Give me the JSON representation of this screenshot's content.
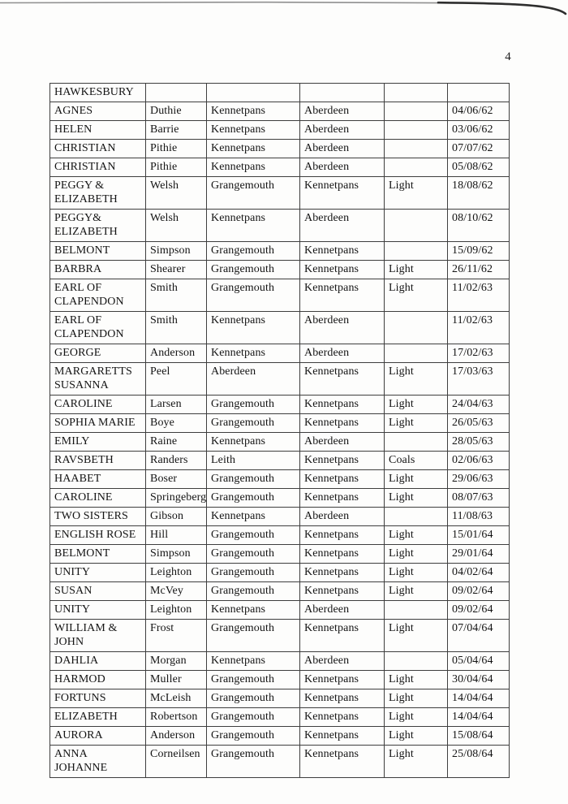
{
  "page": {
    "number": "4"
  },
  "table": {
    "rows": [
      {
        "vessel": "HAWKESBURY",
        "master": "",
        "origin": "",
        "destination": "",
        "cargo": "",
        "date": ""
      },
      {
        "vessel": "AGNES",
        "master": "Duthie",
        "origin": "Kennetpans",
        "destination": "Aberdeen",
        "cargo": "",
        "date": "04/06/62"
      },
      {
        "vessel": "HELEN",
        "master": "Barrie",
        "origin": "Kennetpans",
        "destination": "Aberdeen",
        "cargo": "",
        "date": "03/06/62"
      },
      {
        "vessel": "CHRISTIAN",
        "master": "Pithie",
        "origin": "Kennetpans",
        "destination": "Aberdeen",
        "cargo": "",
        "date": "07/07/62"
      },
      {
        "vessel": "CHRISTIAN",
        "master": "Pithie",
        "origin": "Kennetpans",
        "destination": "Aberdeen",
        "cargo": "",
        "date": "05/08/62"
      },
      {
        "vessel": "PEGGY & ELIZABETH",
        "master": "Welsh",
        "origin": "Grangemouth",
        "destination": "Kennetpans",
        "cargo": "Light",
        "date": "18/08/62"
      },
      {
        "vessel": "PEGGY& ELIZABETH",
        "master": "Welsh",
        "origin": "Kennetpans",
        "destination": "Aberdeen",
        "cargo": "",
        "date": "08/10/62"
      },
      {
        "vessel": "BELMONT",
        "master": "Simpson",
        "origin": "Grangemouth",
        "destination": "Kennetpans",
        "cargo": "",
        "date": "15/09/62"
      },
      {
        "vessel": "BARBRA",
        "master": "Shearer",
        "origin": "Grangemouth",
        "destination": "Kennetpans",
        "cargo": "Light",
        "date": "26/11/62"
      },
      {
        "vessel": "EARL OF CLAPENDON",
        "master": "Smith",
        "origin": "Grangemouth",
        "destination": "Kennetpans",
        "cargo": "Light",
        "date": "11/02/63"
      },
      {
        "vessel": "EARL OF CLAPENDON",
        "master": "Smith",
        "origin": "Kennetpans",
        "destination": "Aberdeen",
        "cargo": "",
        "date": "11/02/63"
      },
      {
        "vessel": "GEORGE",
        "master": "Anderson",
        "origin": "Kennetpans",
        "destination": "Aberdeen",
        "cargo": "",
        "date": "17/02/63"
      },
      {
        "vessel": "MARGARETTS SUSANNA",
        "master": "Peel",
        "origin": "Aberdeen",
        "destination": "Kennetpans",
        "cargo": "Light",
        "date": "17/03/63"
      },
      {
        "vessel": "CAROLINE",
        "master": "Larsen",
        "origin": "Grangemouth",
        "destination": "Kennetpans",
        "cargo": "Light",
        "date": "24/04/63"
      },
      {
        "vessel": "SOPHIA MARIE",
        "master": "Boye",
        "origin": "Grangemouth",
        "destination": "Kennetpans",
        "cargo": "Light",
        "date": "26/05/63"
      },
      {
        "vessel": "EMILY",
        "master": "Raine",
        "origin": "Kennetpans",
        "destination": "Aberdeen",
        "cargo": "",
        "date": "28/05/63"
      },
      {
        "vessel": "RAVSBETH",
        "master": "Randers",
        "origin": "Leith",
        "destination": "Kennetpans",
        "cargo": "Coals",
        "date": "02/06/63"
      },
      {
        "vessel": "HAABET",
        "master": "Boser",
        "origin": "Grangemouth",
        "destination": "Kennetpans",
        "cargo": "Light",
        "date": "29/06/63"
      },
      {
        "vessel": "CAROLINE",
        "master": "Springeberg",
        "origin": "Grangemouth",
        "destination": "Kennetpans",
        "cargo": "Light",
        "date": "08/07/63"
      },
      {
        "vessel": "TWO SISTERS",
        "master": "Gibson",
        "origin": "Kennetpans",
        "destination": "Aberdeen",
        "cargo": "",
        "date": "11/08/63"
      },
      {
        "vessel": "ENGLISH ROSE",
        "master": "Hill",
        "origin": "Grangemouth",
        "destination": "Kennetpans",
        "cargo": "Light",
        "date": "15/01/64"
      },
      {
        "vessel": "BELMONT",
        "master": "Simpson",
        "origin": "Grangemouth",
        "destination": "Kennetpans",
        "cargo": "Light",
        "date": "29/01/64"
      },
      {
        "vessel": "UNITY",
        "master": "Leighton",
        "origin": "Grangemouth",
        "destination": "Kennetpans",
        "cargo": "Light",
        "date": "04/02/64"
      },
      {
        "vessel": "SUSAN",
        "master": "McVey",
        "origin": "Grangemouth",
        "destination": "Kennetpans",
        "cargo": "Light",
        "date": "09/02/64"
      },
      {
        "vessel": "UNITY",
        "master": "Leighton",
        "origin": "Kennetpans",
        "destination": "Aberdeen",
        "cargo": "",
        "date": "09/02/64"
      },
      {
        "vessel": "WILLIAM & JOHN",
        "master": "Frost",
        "origin": "Grangemouth",
        "destination": "Kennetpans",
        "cargo": "Light",
        "date": "07/04/64"
      },
      {
        "vessel": "DAHLIA",
        "master": "Morgan",
        "origin": "Kennetpans",
        "destination": "Aberdeen",
        "cargo": "",
        "date": "05/04/64"
      },
      {
        "vessel": "HARMOD",
        "master": "Muller",
        "origin": "Grangemouth",
        "destination": "Kennetpans",
        "cargo": "Light",
        "date": "30/04/64"
      },
      {
        "vessel": "FORTUNS",
        "master": "McLeish",
        "origin": "Grangemouth",
        "destination": "Kennetpans",
        "cargo": "Light",
        "date": "14/04/64"
      },
      {
        "vessel": "ELIZABETH",
        "master": "Robertson",
        "origin": "Grangemouth",
        "destination": "Kennetpans",
        "cargo": "Light",
        "date": "14/04/64"
      },
      {
        "vessel": "AURORA",
        "master": "Anderson",
        "origin": "Grangemouth",
        "destination": "Kennetpans",
        "cargo": "Light",
        "date": "15/08/64"
      },
      {
        "vessel": "ANNA JOHANNE",
        "master": "Corneilsen",
        "origin": "Grangemouth",
        "destination": "Kennetpans",
        "cargo": "Light",
        "date": "25/08/64"
      }
    ]
  }
}
